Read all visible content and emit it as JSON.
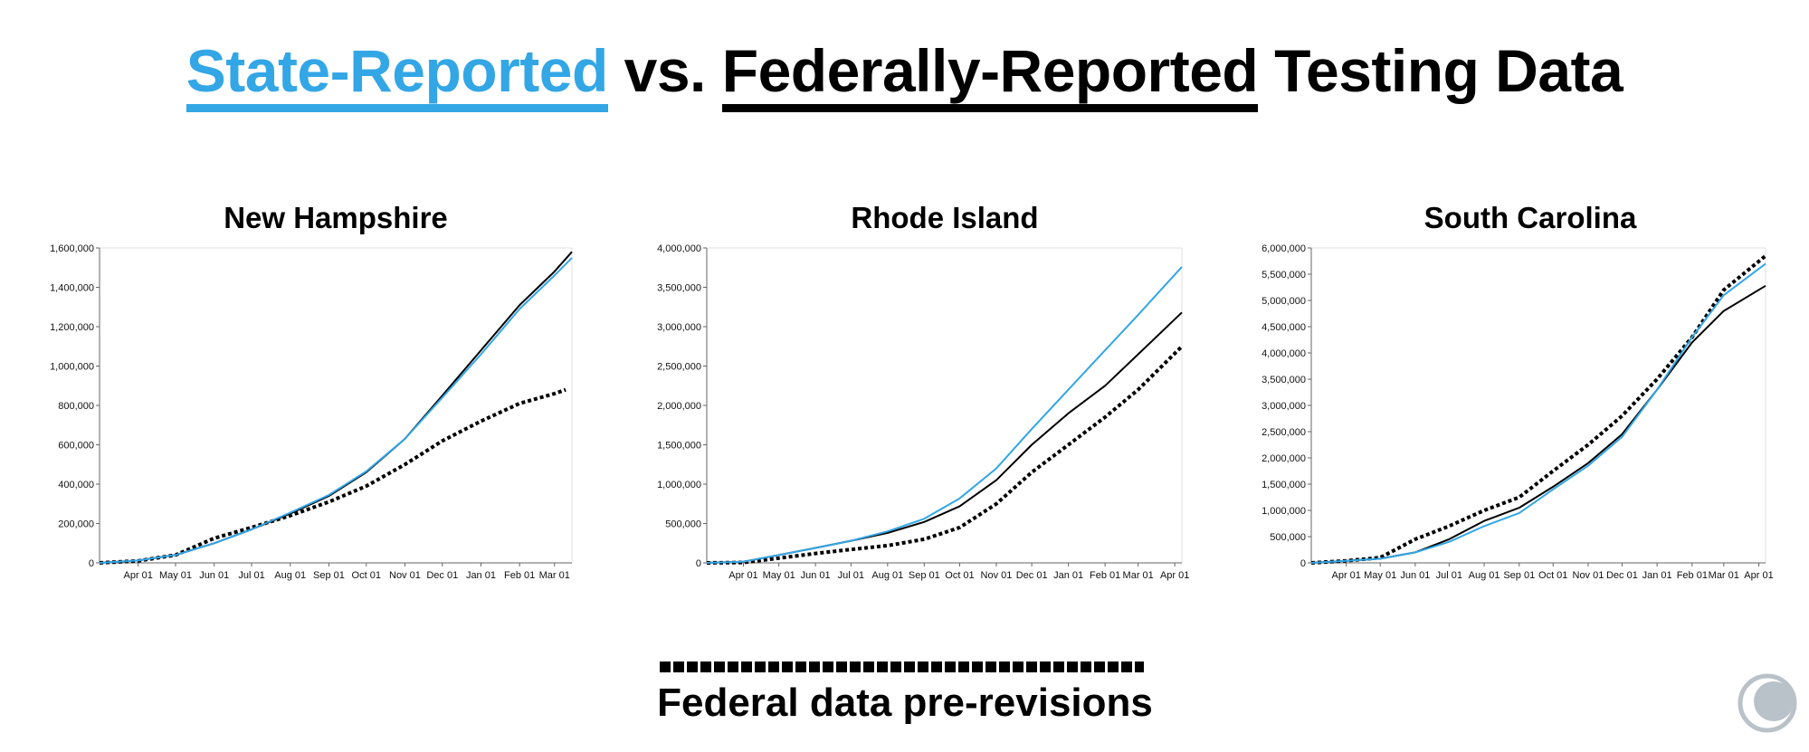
{
  "headline": {
    "part1": "State-Reported",
    "part2": " vs. ",
    "part3": "Federally-Reported",
    "part4": " Testing Data"
  },
  "legend": {
    "label": "Federal data pre-revisions"
  },
  "colors": {
    "state": "#33a6e6",
    "federal": "#000000",
    "federal_pre": "#000000"
  },
  "logo": {
    "icon": "covid-tracking-project-logo-icon"
  },
  "chart_data": [
    {
      "type": "line",
      "title": "New Hampshire",
      "x_start": "2020-03-01",
      "x_end": "2021-03-15",
      "xticks": [
        "Apr 01",
        "May 01",
        "Jun 01",
        "Jul 01",
        "Aug 01",
        "Sep 01",
        "Oct 01",
        "Nov 01",
        "Dec 01",
        "Jan 01",
        "Feb 01",
        "Mar 01"
      ],
      "xtick_dates": [
        "2020-04-01",
        "2020-05-01",
        "2020-06-01",
        "2020-07-01",
        "2020-08-01",
        "2020-09-01",
        "2020-10-01",
        "2020-11-01",
        "2020-12-01",
        "2021-01-01",
        "2021-02-01",
        "2021-03-01"
      ],
      "ylim": [
        0,
        1600000
      ],
      "yticks": [
        0,
        200000,
        400000,
        600000,
        800000,
        1000000,
        1200000,
        1400000,
        1600000
      ],
      "ytick_labels": [
        "0",
        "200,000",
        "400,000",
        "600,000",
        "800,000",
        "1,000,000",
        "1,200,000",
        "1,400,000",
        "1,600,000"
      ],
      "series": [
        {
          "style": "dotted",
          "color": "#000000",
          "x": [
            "2020-03-01",
            "2020-04-01",
            "2020-05-01",
            "2020-06-01",
            "2020-07-01",
            "2020-08-01",
            "2020-09-01",
            "2020-10-01",
            "2020-11-01",
            "2020-12-01",
            "2021-01-01",
            "2021-02-01",
            "2021-03-01",
            "2021-03-10"
          ],
          "y": [
            0,
            10000,
            40000,
            125000,
            180000,
            240000,
            310000,
            390000,
            500000,
            620000,
            720000,
            810000,
            860000,
            880000
          ]
        },
        {
          "style": "solid",
          "color": "#000000",
          "x": [
            "2020-03-01",
            "2020-04-01",
            "2020-05-01",
            "2020-06-01",
            "2020-07-01",
            "2020-08-01",
            "2020-09-01",
            "2020-10-01",
            "2020-11-01",
            "2020-12-01",
            "2021-01-01",
            "2021-02-01",
            "2021-03-01",
            "2021-03-15"
          ],
          "y": [
            0,
            12000,
            40000,
            100000,
            170000,
            250000,
            340000,
            460000,
            630000,
            850000,
            1080000,
            1310000,
            1480000,
            1580000
          ]
        },
        {
          "style": "solid",
          "color": "#33a6e6",
          "x": [
            "2020-03-01",
            "2020-04-01",
            "2020-05-01",
            "2020-06-01",
            "2020-07-01",
            "2020-08-01",
            "2020-09-01",
            "2020-10-01",
            "2020-11-01",
            "2020-12-01",
            "2021-01-01",
            "2021-02-01",
            "2021-03-01",
            "2021-03-15"
          ],
          "y": [
            0,
            12000,
            40000,
            100000,
            170000,
            255000,
            345000,
            465000,
            630000,
            840000,
            1060000,
            1290000,
            1460000,
            1550000
          ]
        }
      ]
    },
    {
      "type": "line",
      "title": "Rhode Island",
      "x_start": "2020-03-01",
      "x_end": "2021-04-07",
      "xticks": [
        "Apr 01",
        "May 01",
        "Jun 01",
        "Jul 01",
        "Aug 01",
        "Sep 01",
        "Oct 01",
        "Nov 01",
        "Dec 01",
        "Jan 01",
        "Feb 01",
        "Mar 01",
        "Apr 01"
      ],
      "xtick_dates": [
        "2020-04-01",
        "2020-05-01",
        "2020-06-01",
        "2020-07-01",
        "2020-08-01",
        "2020-09-01",
        "2020-10-01",
        "2020-11-01",
        "2020-12-01",
        "2021-01-01",
        "2021-02-01",
        "2021-03-01",
        "2021-04-01"
      ],
      "ylim": [
        0,
        4000000
      ],
      "yticks": [
        0,
        500000,
        1000000,
        1500000,
        2000000,
        2500000,
        3000000,
        3500000,
        4000000
      ],
      "ytick_labels": [
        "0",
        "500,000",
        "1,000,000",
        "1,500,000",
        "2,000,000",
        "2,500,000",
        "3,000,000",
        "3,500,000",
        "4,000,000"
      ],
      "series": [
        {
          "style": "dotted",
          "color": "#000000",
          "x": [
            "2020-03-01",
            "2020-04-01",
            "2020-05-01",
            "2020-06-01",
            "2020-07-01",
            "2020-08-01",
            "2020-09-01",
            "2020-10-01",
            "2020-11-01",
            "2020-12-01",
            "2021-01-01",
            "2021-02-01",
            "2021-03-01",
            "2021-04-07"
          ],
          "y": [
            0,
            5000,
            60000,
            120000,
            170000,
            220000,
            300000,
            450000,
            750000,
            1150000,
            1500000,
            1850000,
            2200000,
            2750000
          ]
        },
        {
          "style": "solid",
          "color": "#000000",
          "x": [
            "2020-03-01",
            "2020-04-01",
            "2020-05-01",
            "2020-06-01",
            "2020-07-01",
            "2020-08-01",
            "2020-09-01",
            "2020-10-01",
            "2020-11-01",
            "2020-12-01",
            "2021-01-01",
            "2021-02-01",
            "2021-03-01",
            "2021-04-07"
          ],
          "y": [
            0,
            15000,
            100000,
            190000,
            280000,
            380000,
            520000,
            720000,
            1050000,
            1500000,
            1900000,
            2250000,
            2650000,
            3180000
          ]
        },
        {
          "style": "solid",
          "color": "#33a6e6",
          "x": [
            "2020-03-01",
            "2020-04-01",
            "2020-05-01",
            "2020-06-01",
            "2020-07-01",
            "2020-08-01",
            "2020-09-01",
            "2020-10-01",
            "2020-11-01",
            "2020-12-01",
            "2021-01-01",
            "2021-02-01",
            "2021-03-01",
            "2021-04-07"
          ],
          "y": [
            0,
            15000,
            100000,
            190000,
            280000,
            400000,
            560000,
            820000,
            1200000,
            1700000,
            2200000,
            2700000,
            3150000,
            3760000
          ]
        }
      ]
    },
    {
      "type": "line",
      "title": "South Carolina",
      "x_start": "2020-03-01",
      "x_end": "2021-04-07",
      "xticks": [
        "Apr 01",
        "May 01",
        "Jun 01",
        "Jul 01",
        "Aug 01",
        "Sep 01",
        "Oct 01",
        "Nov 01",
        "Dec 01",
        "Jan 01",
        "Feb 01",
        "Mar 01",
        "Apr 01"
      ],
      "xtick_dates": [
        "2020-04-01",
        "2020-05-01",
        "2020-06-01",
        "2020-07-01",
        "2020-08-01",
        "2020-09-01",
        "2020-10-01",
        "2020-11-01",
        "2020-12-01",
        "2021-01-01",
        "2021-02-01",
        "2021-03-01",
        "2021-04-01"
      ],
      "ylim": [
        0,
        6000000
      ],
      "yticks": [
        0,
        500000,
        1000000,
        1500000,
        2000000,
        2500000,
        3000000,
        3500000,
        4000000,
        4500000,
        5000000,
        5500000,
        6000000
      ],
      "ytick_labels": [
        "0",
        "500,000",
        "1,000,000",
        "1,500,000",
        "2,000,000",
        "2,500,000",
        "3,000,000",
        "3,500,000",
        "4,000,000",
        "4,500,000",
        "5,000,000",
        "5,500,000",
        "6,000,000"
      ],
      "series": [
        {
          "style": "dotted",
          "color": "#000000",
          "x": [
            "2020-03-01",
            "2020-04-01",
            "2020-05-01",
            "2020-06-01",
            "2020-07-01",
            "2020-08-01",
            "2020-09-01",
            "2020-10-01",
            "2020-11-01",
            "2020-12-01",
            "2021-01-01",
            "2021-02-01",
            "2021-03-01",
            "2021-04-07"
          ],
          "y": [
            0,
            40000,
            100000,
            450000,
            700000,
            1000000,
            1250000,
            1750000,
            2250000,
            2800000,
            3500000,
            4300000,
            5200000,
            5850000
          ]
        },
        {
          "style": "solid",
          "color": "#000000",
          "x": [
            "2020-03-01",
            "2020-04-01",
            "2020-05-01",
            "2020-06-01",
            "2020-07-01",
            "2020-08-01",
            "2020-09-01",
            "2020-10-01",
            "2020-11-01",
            "2020-12-01",
            "2021-01-01",
            "2021-02-01",
            "2021-03-01",
            "2021-04-07"
          ],
          "y": [
            0,
            40000,
            80000,
            200000,
            450000,
            800000,
            1050000,
            1450000,
            1900000,
            2450000,
            3300000,
            4200000,
            4800000,
            5280000
          ]
        },
        {
          "style": "solid",
          "color": "#33a6e6",
          "x": [
            "2020-03-01",
            "2020-04-01",
            "2020-05-01",
            "2020-06-01",
            "2020-07-01",
            "2020-08-01",
            "2020-09-01",
            "2020-10-01",
            "2020-11-01",
            "2020-12-01",
            "2021-01-01",
            "2021-02-01",
            "2021-03-01",
            "2021-04-07"
          ],
          "y": [
            0,
            40000,
            80000,
            200000,
            400000,
            700000,
            950000,
            1400000,
            1850000,
            2400000,
            3300000,
            4300000,
            5100000,
            5700000
          ]
        }
      ]
    }
  ]
}
